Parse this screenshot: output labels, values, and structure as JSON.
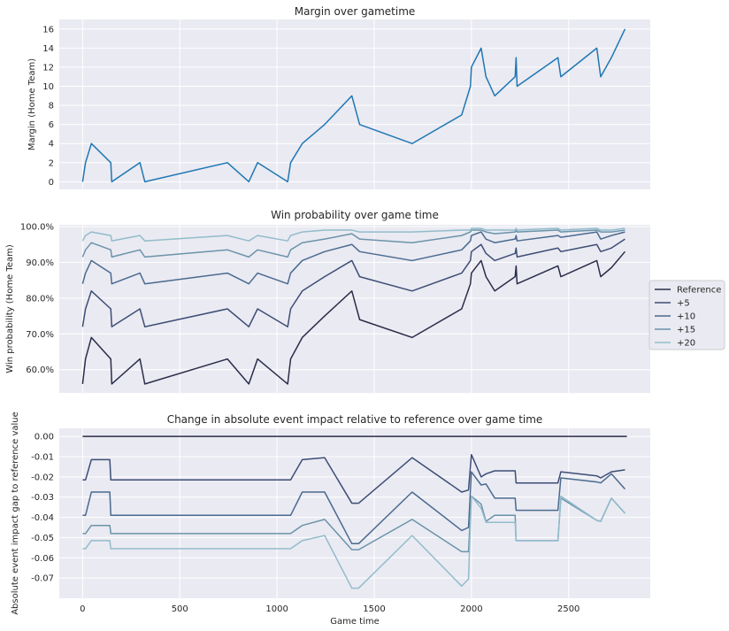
{
  "chart_data": [
    {
      "type": "line",
      "title": "Margin over gametime",
      "xlabel": "",
      "ylabel": "Margin (Home Team)",
      "xlim": [
        -120,
        2920
      ],
      "ylim": [
        -0.8,
        17
      ],
      "yticks": [
        0,
        2,
        4,
        6,
        8,
        10,
        12,
        14,
        16
      ],
      "ytick_labels": [
        "0",
        "2",
        "4",
        "6",
        "8",
        "10",
        "12",
        "14",
        "16"
      ],
      "xticks": [
        0,
        500,
        1000,
        1500,
        2000,
        2500
      ],
      "grid": true,
      "series": [
        {
          "color": "#1f77b4",
          "x": [
            0,
            15,
            45,
            145,
            150,
            295,
            320,
            745,
            855,
            900,
            1055,
            1070,
            1130,
            1245,
            1385,
            1425,
            1695,
            1950,
            1995,
            2000,
            2050,
            2075,
            2120,
            2225,
            2230,
            2235,
            2445,
            2460,
            2645,
            2665,
            2720,
            2790
          ],
          "y": [
            0,
            2,
            4,
            2,
            0,
            2,
            0,
            2,
            0,
            2,
            0,
            2,
            4,
            6,
            9,
            6,
            4,
            7,
            10,
            12,
            14,
            11,
            9,
            11,
            13,
            10,
            13,
            11,
            14,
            11,
            13,
            16
          ]
        }
      ]
    },
    {
      "type": "line",
      "title": "Win probability over game time",
      "xlabel": "",
      "ylabel": "Win probability (Home Team)",
      "xlim": [
        -120,
        2920
      ],
      "ylim": [
        53.5,
        100.5
      ],
      "yticks": [
        60,
        70,
        80,
        90,
        100
      ],
      "ytick_labels": [
        "60.0%",
        "70.0%",
        "80.0%",
        "90.0%",
        "100.0%"
      ],
      "xticks": [
        0,
        500,
        1000,
        1500,
        2000,
        2500
      ],
      "grid": true,
      "legend": {
        "placement": "right",
        "entries": [
          "Reference",
          "+5",
          "+10",
          "+15",
          "+20"
        ]
      },
      "series": [
        {
          "name": "Reference",
          "color": "#2b2d4a",
          "x": [
            0,
            15,
            45,
            145,
            150,
            295,
            320,
            745,
            855,
            900,
            1055,
            1070,
            1130,
            1245,
            1385,
            1425,
            1695,
            1950,
            1995,
            2000,
            2050,
            2075,
            2120,
            2225,
            2230,
            2235,
            2445,
            2460,
            2645,
            2665,
            2720,
            2790
          ],
          "y": [
            56,
            63,
            69,
            63,
            56,
            63,
            56,
            63,
            56,
            63,
            56,
            63,
            69,
            75,
            82,
            74,
            69,
            77,
            84,
            87,
            90.5,
            86,
            82,
            86,
            89,
            84,
            89,
            86,
            90.5,
            86,
            88.5,
            93
          ]
        },
        {
          "name": "+5",
          "color": "#3d4d75",
          "x": [
            0,
            15,
            45,
            145,
            150,
            295,
            320,
            745,
            855,
            900,
            1055,
            1070,
            1130,
            1245,
            1385,
            1425,
            1695,
            1950,
            1995,
            2000,
            2050,
            2075,
            2120,
            2225,
            2230,
            2235,
            2445,
            2460,
            2645,
            2665,
            2720,
            2790
          ],
          "y": [
            72,
            77,
            82,
            77,
            72,
            77,
            72,
            77,
            72,
            77,
            72,
            77,
            82,
            86,
            90.5,
            86,
            82,
            87,
            90.5,
            93,
            95,
            92.5,
            90.5,
            92.5,
            94,
            91.5,
            94,
            93,
            95,
            93,
            94,
            96.5
          ]
        },
        {
          "name": "+10",
          "color": "#4a6a8f",
          "x": [
            0,
            15,
            45,
            145,
            150,
            295,
            320,
            745,
            855,
            900,
            1055,
            1070,
            1130,
            1245,
            1385,
            1425,
            1695,
            1950,
            1995,
            2000,
            2050,
            2075,
            2120,
            2225,
            2230,
            2235,
            2445,
            2460,
            2645,
            2665,
            2720,
            2790
          ],
          "y": [
            84,
            87,
            90.5,
            87,
            84,
            87,
            84,
            87,
            84,
            87,
            84,
            87,
            90.5,
            93,
            95,
            93,
            90.5,
            93.5,
            96,
            97.5,
            98.5,
            96.5,
            95.5,
            96.5,
            97.5,
            96,
            97.5,
            97,
            98.5,
            96.5,
            97.5,
            98.5
          ]
        },
        {
          "name": "+15",
          "color": "#6b93aa",
          "x": [
            0,
            15,
            45,
            145,
            150,
            295,
            320,
            745,
            855,
            900,
            1055,
            1070,
            1130,
            1245,
            1385,
            1425,
            1695,
            1950,
            1995,
            2000,
            2050,
            2075,
            2120,
            2225,
            2230,
            2235,
            2445,
            2460,
            2645,
            2665,
            2720,
            2790
          ],
          "y": [
            91.5,
            93.5,
            95.5,
            93.5,
            91.5,
            93.5,
            91.5,
            93.5,
            91.5,
            93.5,
            91.5,
            93.5,
            95.5,
            96.5,
            98,
            96.5,
            95.5,
            97.5,
            98.5,
            99,
            99,
            98.5,
            98,
            98.5,
            99,
            98.5,
            99,
            98.5,
            99,
            98.5,
            98.5,
            99
          ]
        },
        {
          "name": "+20",
          "color": "#92bccb",
          "x": [
            0,
            15,
            45,
            145,
            150,
            295,
            320,
            745,
            855,
            900,
            1055,
            1070,
            1130,
            1245,
            1385,
            1425,
            1695,
            1950,
            1995,
            2000,
            2050,
            2075,
            2120,
            2225,
            2230,
            2235,
            2445,
            2460,
            2645,
            2665,
            2720,
            2790
          ],
          "y": [
            96,
            97.5,
            98.5,
            97.5,
            96,
            97.5,
            96,
            97.5,
            96,
            97.5,
            96,
            97.5,
            98.5,
            99,
            99,
            98.5,
            98.5,
            99,
            99,
            99.5,
            99.5,
            99,
            99,
            99,
            99.5,
            99,
            99.5,
            99,
            99.5,
            99,
            99,
            99.5
          ]
        }
      ]
    },
    {
      "type": "line",
      "title": "Change in absolute event impact relative to reference over game time",
      "xlabel": "Game time",
      "ylabel": "Absolute event impact gap to reference value",
      "xlim": [
        -120,
        2920
      ],
      "ylim": [
        -0.08,
        0.004
      ],
      "yticks": [
        0,
        -0.01,
        -0.02,
        -0.03,
        -0.04,
        -0.05,
        -0.06,
        -0.07
      ],
      "ytick_labels": [
        "0.00",
        "-0.01",
        "-0.02",
        "-0.03",
        "-0.04",
        "-0.05",
        "-0.06",
        "-0.07"
      ],
      "xticks": [
        0,
        500,
        1000,
        1500,
        2000,
        2500
      ],
      "xtick_labels": [
        "0",
        "500",
        "1000",
        "1500",
        "2000",
        "2500"
      ],
      "grid": true,
      "series": [
        {
          "name": "Reference",
          "color": "#2b2d4a",
          "x": [
            0,
            2800
          ],
          "y": [
            0,
            0
          ]
        },
        {
          "name": "+5",
          "color": "#3d4d75",
          "x": [
            0,
            15,
            45,
            140,
            145,
            1070,
            1130,
            1245,
            1385,
            1420,
            1695,
            1950,
            1985,
            2000,
            2050,
            2075,
            2120,
            2225,
            2230,
            2235,
            2445,
            2460,
            2645,
            2665,
            2720,
            2790
          ],
          "y": [
            -0.0215,
            -0.0215,
            -0.0115,
            -0.0115,
            -0.0215,
            -0.0215,
            -0.0115,
            -0.0105,
            -0.033,
            -0.033,
            -0.0105,
            -0.0275,
            -0.0265,
            -0.009,
            -0.02,
            -0.0185,
            -0.017,
            -0.017,
            -0.023,
            -0.023,
            -0.023,
            -0.0175,
            -0.0195,
            -0.0205,
            -0.0175,
            -0.0165
          ]
        },
        {
          "name": "+10",
          "color": "#4a6a8f",
          "x": [
            0,
            15,
            45,
            140,
            145,
            1070,
            1130,
            1245,
            1385,
            1420,
            1695,
            1950,
            1985,
            2000,
            2050,
            2075,
            2120,
            2225,
            2230,
            2235,
            2445,
            2460,
            2645,
            2665,
            2720,
            2790
          ],
          "y": [
            -0.039,
            -0.039,
            -0.0275,
            -0.0275,
            -0.039,
            -0.039,
            -0.0275,
            -0.0275,
            -0.053,
            -0.053,
            -0.0275,
            -0.0465,
            -0.045,
            -0.0175,
            -0.024,
            -0.0235,
            -0.0305,
            -0.0305,
            -0.0365,
            -0.0365,
            -0.0365,
            -0.0205,
            -0.0225,
            -0.023,
            -0.0185,
            -0.026
          ]
        },
        {
          "name": "+15",
          "color": "#6b93aa",
          "x": [
            0,
            15,
            45,
            140,
            145,
            1070,
            1130,
            1245,
            1385,
            1420,
            1695,
            1950,
            1985,
            2000,
            2050,
            2075,
            2120,
            2225,
            2230,
            2235,
            2445,
            2460,
            2645,
            2665,
            2720,
            2790
          ],
          "y": [
            -0.048,
            -0.048,
            -0.044,
            -0.044,
            -0.048,
            -0.048,
            -0.044,
            -0.041,
            -0.056,
            -0.056,
            -0.041,
            -0.057,
            -0.057,
            -0.0295,
            -0.0335,
            -0.042,
            -0.039,
            -0.039,
            -0.0515,
            -0.0515,
            -0.0515,
            -0.0305,
            -0.0415,
            -0.042,
            -0.0305,
            -0.038
          ]
        },
        {
          "name": "+20",
          "color": "#92bccb",
          "x": [
            0,
            15,
            45,
            140,
            145,
            1070,
            1130,
            1245,
            1385,
            1420,
            1695,
            1950,
            1985,
            2000,
            2050,
            2075,
            2120,
            2225,
            2230,
            2235,
            2445,
            2460,
            2645,
            2665,
            2720,
            2790
          ],
          "y": [
            -0.0555,
            -0.0555,
            -0.0515,
            -0.0515,
            -0.0555,
            -0.0555,
            -0.0515,
            -0.049,
            -0.075,
            -0.075,
            -0.049,
            -0.074,
            -0.0705,
            -0.0295,
            -0.0355,
            -0.0425,
            -0.0425,
            -0.0425,
            -0.0515,
            -0.0515,
            -0.0515,
            -0.0295,
            -0.0415,
            -0.042,
            -0.0305,
            -0.038
          ]
        }
      ]
    }
  ]
}
